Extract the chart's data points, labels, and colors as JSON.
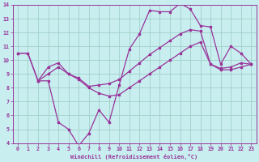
{
  "xlabel": "Windchill (Refroidissement éolien,°C)",
  "xlim": [
    -0.5,
    23.5
  ],
  "ylim": [
    4,
    14
  ],
  "xticks": [
    0,
    1,
    2,
    3,
    4,
    5,
    6,
    7,
    8,
    9,
    10,
    11,
    12,
    13,
    14,
    15,
    16,
    17,
    18,
    19,
    20,
    21,
    22,
    23
  ],
  "yticks": [
    4,
    5,
    6,
    7,
    8,
    9,
    10,
    11,
    12,
    13,
    14
  ],
  "bg_color": "#c8eef0",
  "grid_color": "#a0d0c8",
  "line_color": "#993399",
  "lines": [
    {
      "x": [
        0,
        1,
        2,
        3,
        4,
        5,
        6,
        7,
        8,
        9,
        10,
        11,
        12,
        13,
        14,
        15,
        16,
        17,
        18,
        19,
        20,
        21,
        22,
        23
      ],
      "y": [
        10.5,
        10.5,
        8.5,
        8.5,
        5.5,
        5.0,
        3.8,
        4.7,
        6.4,
        5.5,
        8.2,
        10.8,
        11.9,
        13.6,
        13.5,
        13.5,
        14.1,
        13.7,
        12.5,
        12.4,
        9.7,
        11.0,
        10.5,
        9.7
      ]
    },
    {
      "x": [
        0,
        1,
        2,
        3,
        4,
        5,
        6,
        7,
        8,
        9,
        10,
        11,
        12,
        13,
        14,
        15,
        16,
        17,
        18,
        19,
        20,
        21,
        22,
        23
      ],
      "y": [
        10.5,
        10.5,
        8.5,
        9.5,
        9.8,
        9.0,
        8.7,
        8.1,
        8.2,
        8.3,
        8.6,
        9.2,
        9.8,
        10.4,
        10.9,
        11.4,
        11.9,
        12.2,
        12.1,
        9.7,
        9.4,
        9.5,
        9.8,
        9.7
      ]
    },
    {
      "x": [
        2,
        3,
        4,
        5,
        6,
        7,
        8,
        9,
        10,
        11,
        12,
        13,
        14,
        15,
        16,
        17,
        18,
        19,
        20,
        21,
        22,
        23
      ],
      "y": [
        8.5,
        9.0,
        9.5,
        9.0,
        8.6,
        8.0,
        7.6,
        7.4,
        7.5,
        8.0,
        8.5,
        9.0,
        9.5,
        10.0,
        10.5,
        11.0,
        11.3,
        9.7,
        9.3,
        9.3,
        9.5,
        9.7
      ]
    }
  ]
}
